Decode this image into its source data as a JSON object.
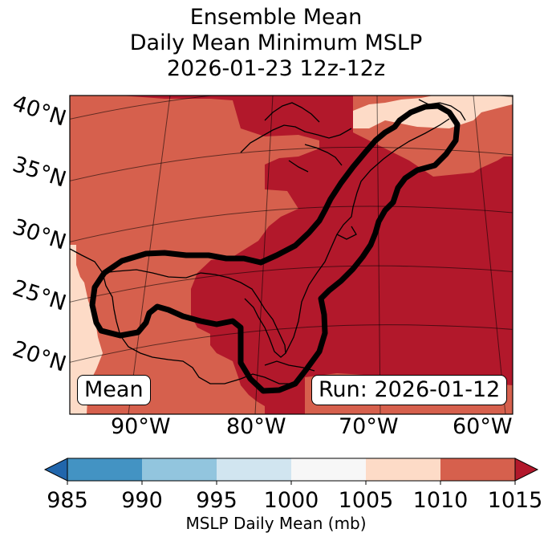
{
  "title": {
    "line1": "Ensemble Mean",
    "line2": "Daily Mean Minimum MSLP",
    "line3": "2026-01-23 12z-12z"
  },
  "map": {
    "lat_labels": [
      "40°N",
      "35°N",
      "30°N",
      "25°N",
      "20°N"
    ],
    "lon_labels": [
      "90°W",
      "80°W",
      "70°W",
      "60°W"
    ],
    "left_box_label": "Mean",
    "right_box_label": "Run: 2026-01-12",
    "fill_colors": {
      "1005_1010": "#fddbc7",
      "1010_1015": "#d6604d",
      "above_1015": "#b2182b"
    },
    "contour_color": "#000000"
  },
  "colorbar": {
    "ticks": [
      "985",
      "990",
      "995",
      "1000",
      "1005",
      "1010",
      "1015"
    ],
    "colors": [
      "#4393c3",
      "#92c5de",
      "#d1e5f0",
      "#f7f7f7",
      "#fddbc7",
      "#d6604d"
    ],
    "low_extend_color": "#2166ac",
    "high_extend_color": "#b2182b",
    "label": "MSLP Daily Mean (mb)"
  }
}
